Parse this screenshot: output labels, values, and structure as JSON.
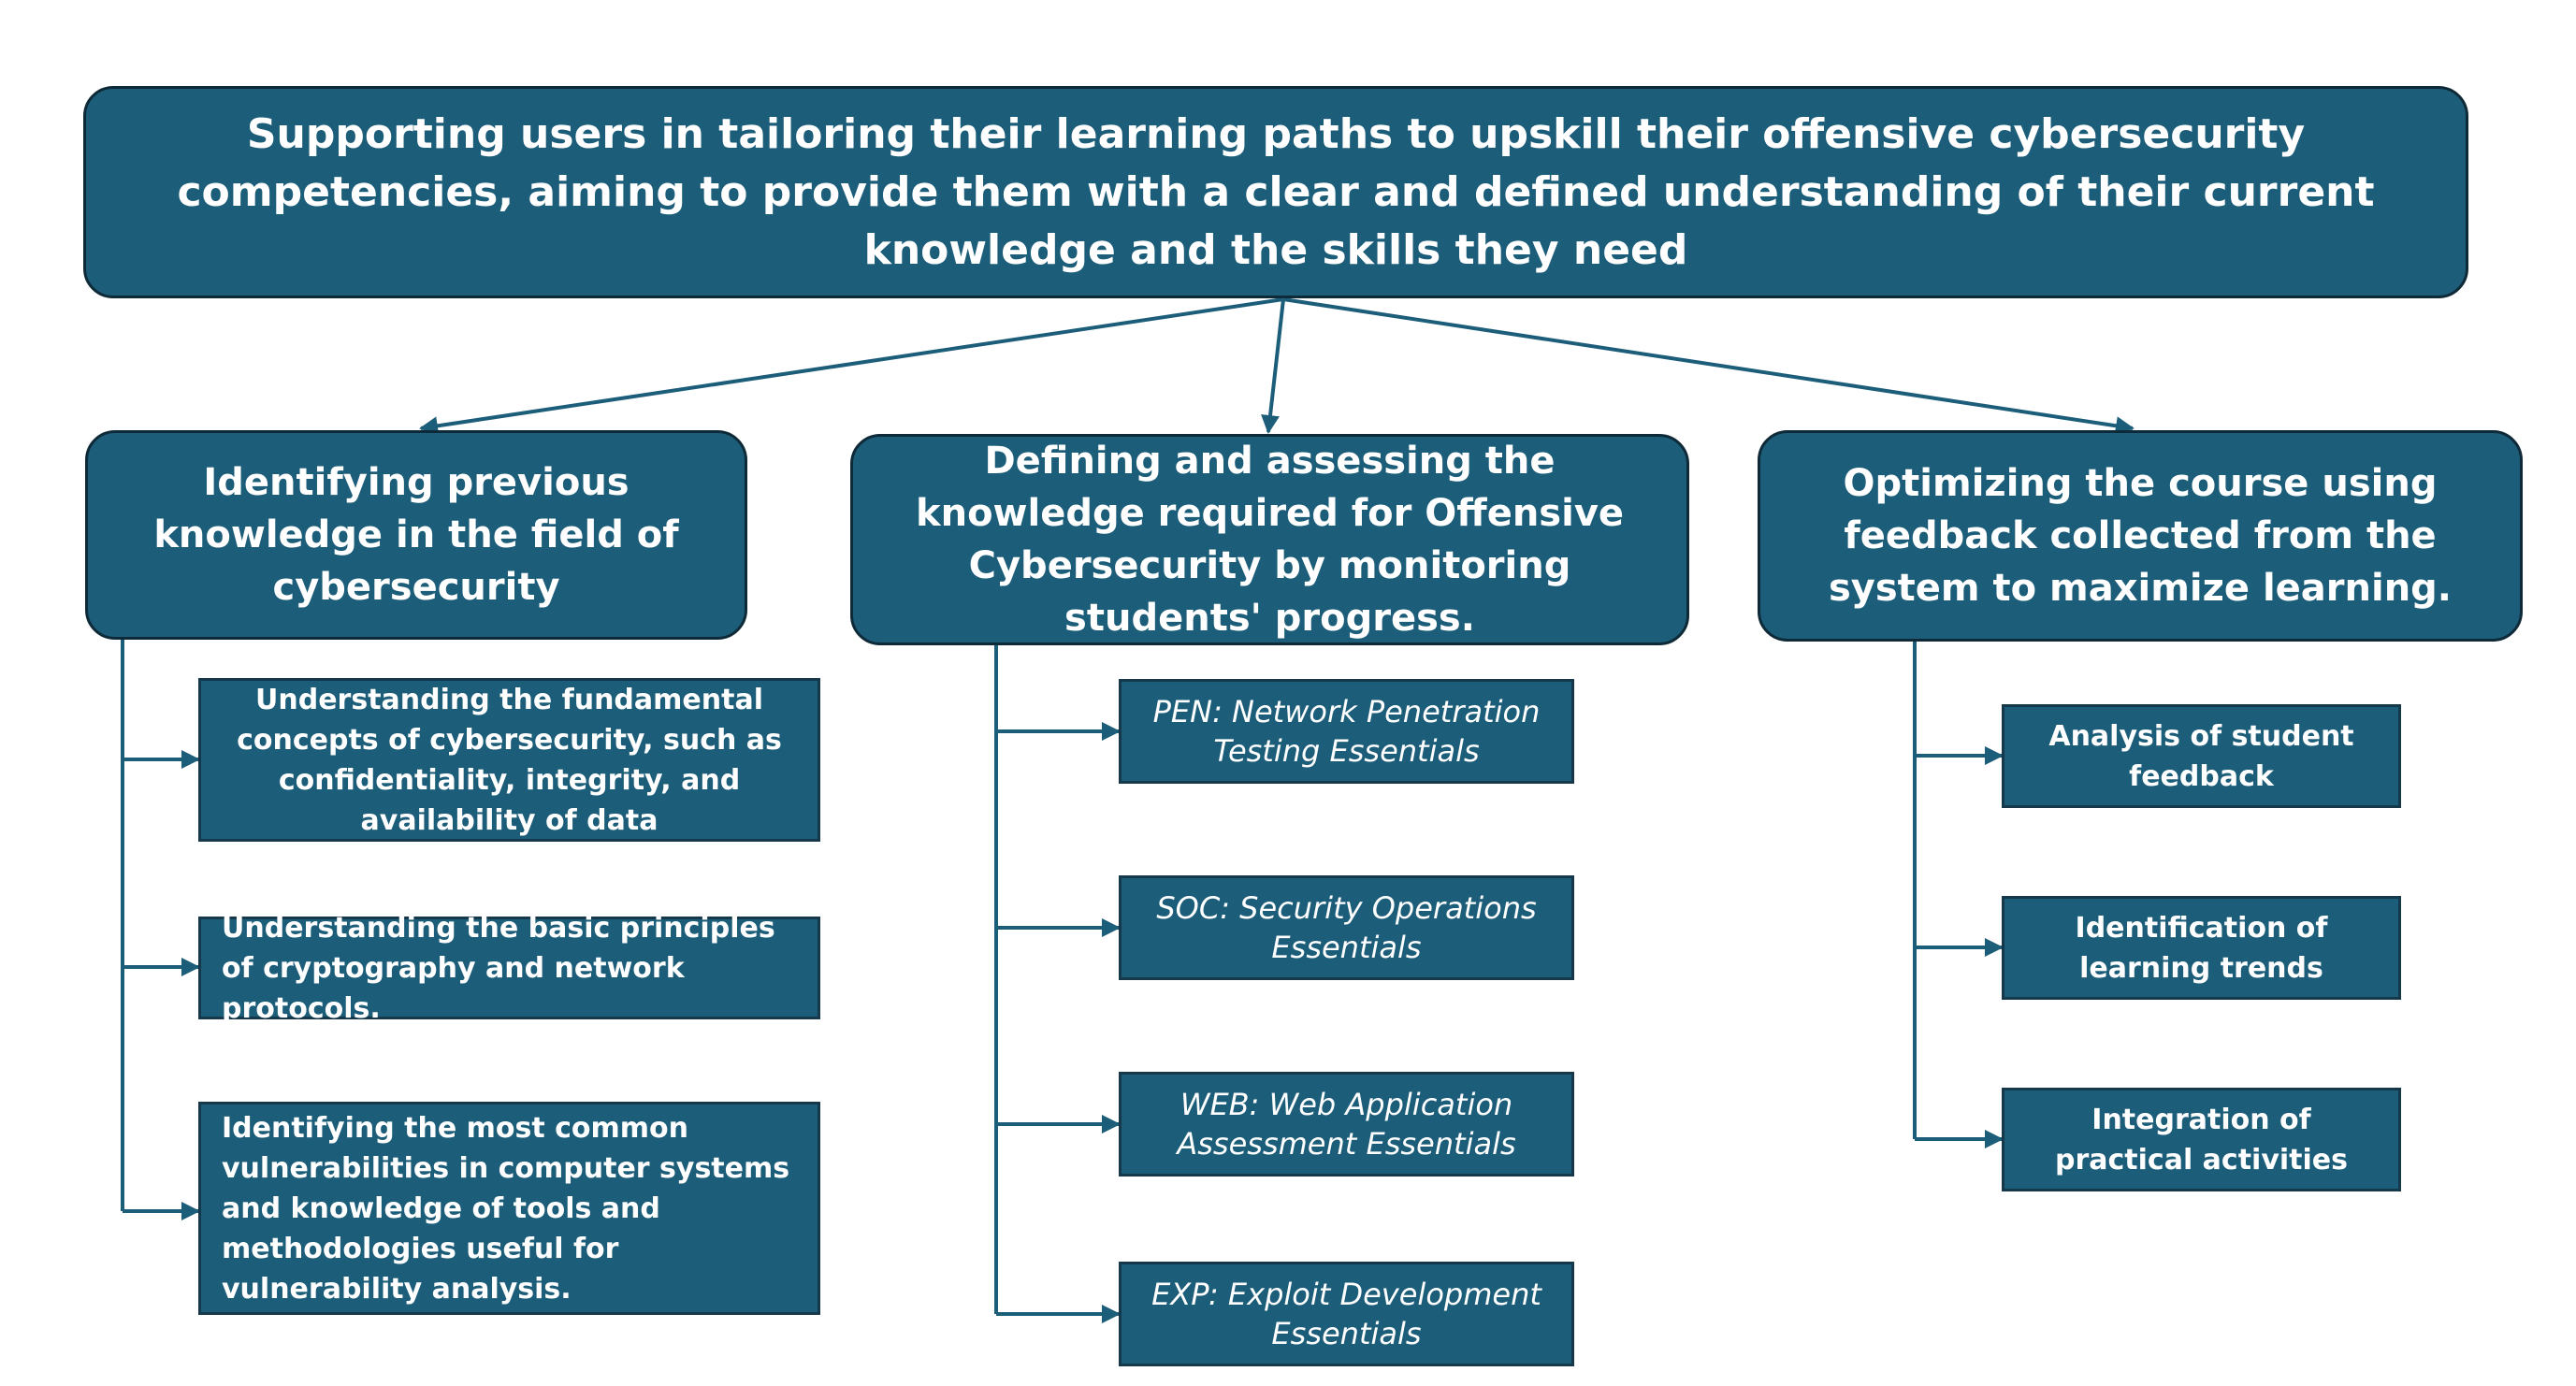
{
  "goal": "Supporting users in tailoring their learning paths to upskill their offensive cybersecurity competencies, aiming to provide them with a clear and defined understanding of their current knowledge and the skills they need",
  "columns": [
    {
      "title": "Identifying previous knowledge in the field of cybersecurity",
      "items": [
        "Understanding the fundamental concepts of cybersecurity, such as confidentiality, integrity, and availability of data",
        "Understanding the basic principles of cryptography and network protocols.",
        "Identifying the most common vulnerabilities in computer systems and knowledge of tools and methodologies useful for vulnerability analysis."
      ]
    },
    {
      "title": "Defining and assessing the knowledge required for Offensive Cybersecurity by monitoring students' progress.",
      "items": [
        "PEN: Network Penetration Testing Essentials",
        "SOC: Security Operations Essentials",
        "WEB: Web Application Assessment Essentials",
        "EXP: Exploit Development Essentials"
      ]
    },
    {
      "title": "Optimizing the course using feedback collected from the system to maximize learning.",
      "items": [
        "Analysis of student feedback",
        "Identification of learning trends",
        "Integration of practical activities"
      ]
    }
  ],
  "colors": {
    "box_fill": "#1c5d79",
    "box_border": "#0e2a38",
    "connector": "#1c5d79",
    "text": "#ffffff"
  }
}
